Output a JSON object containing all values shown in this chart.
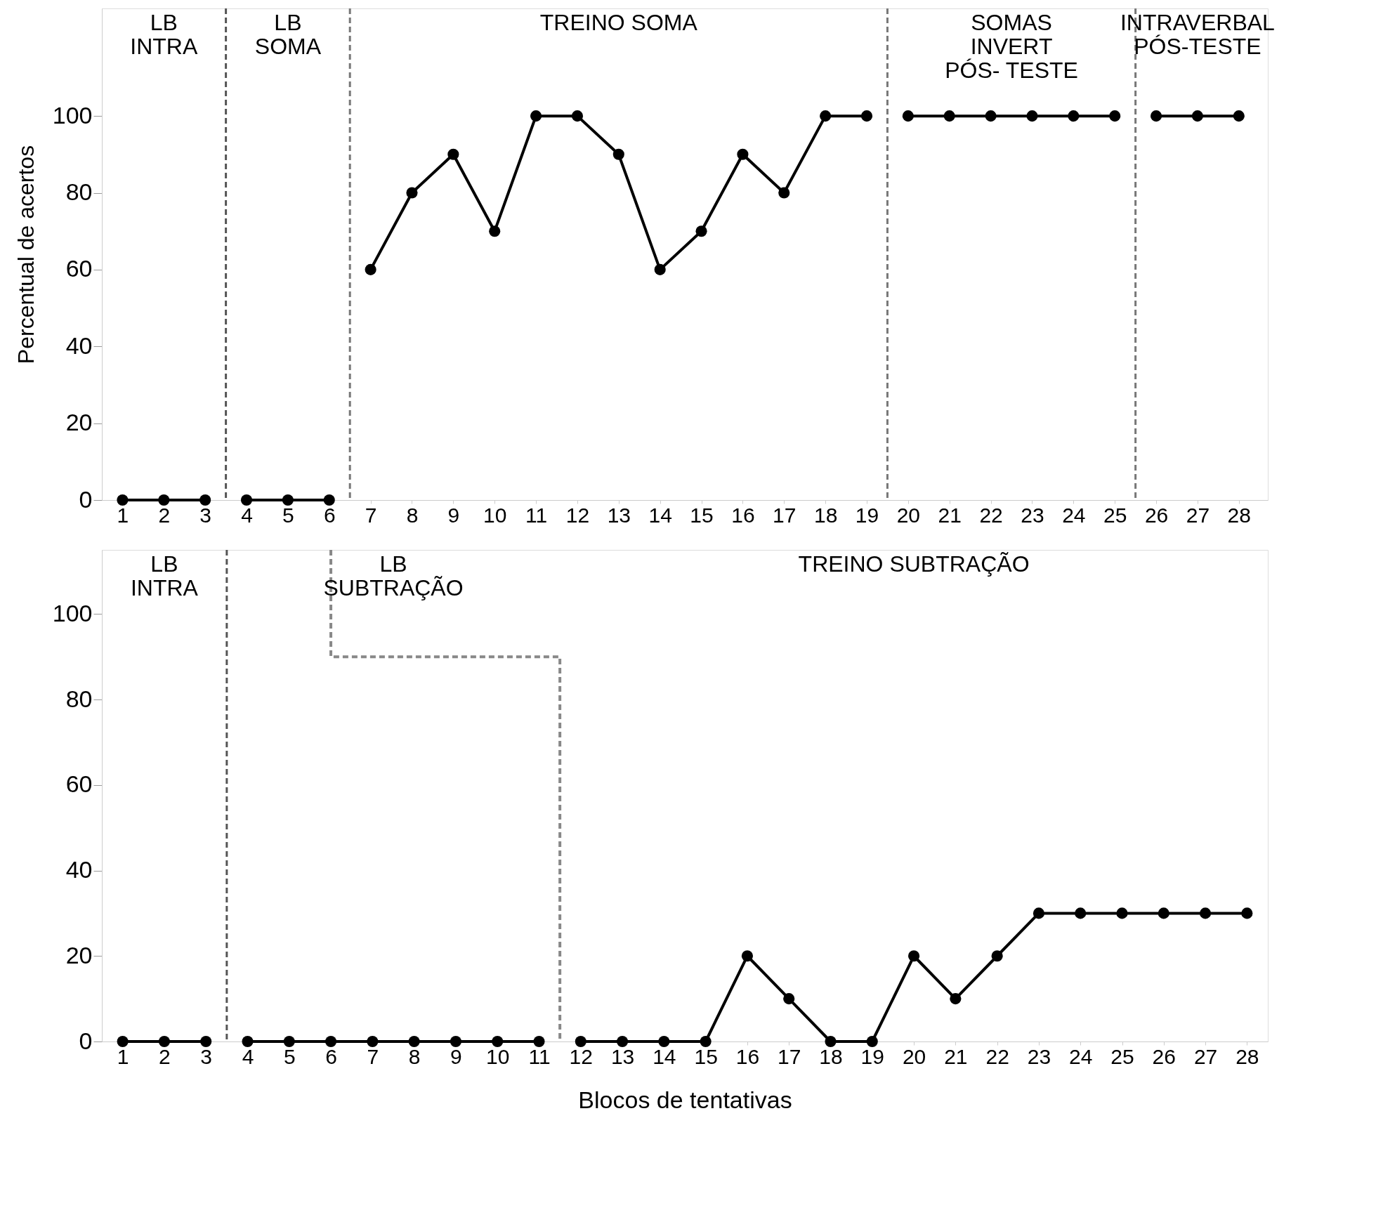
{
  "chart_data": [
    {
      "type": "line",
      "ylabel": "Percentual de acertos",
      "xlim": [
        0.5,
        28.7
      ],
      "ylim": [
        0,
        128
      ],
      "xticks": [
        1,
        2,
        3,
        4,
        5,
        6,
        7,
        8,
        9,
        10,
        11,
        12,
        13,
        14,
        15,
        16,
        17,
        18,
        19,
        20,
        21,
        22,
        23,
        24,
        25,
        26,
        27,
        28
      ],
      "yticks": [
        0,
        20,
        40,
        60,
        80,
        100
      ],
      "grid": false,
      "marker": "circle",
      "line_style": "solid",
      "series": [
        {
          "color": "#000000",
          "x": [
            1,
            2,
            3
          ],
          "values": [
            0,
            0,
            0
          ]
        },
        {
          "color": "#000000",
          "x": [
            4,
            5,
            6
          ],
          "values": [
            0,
            0,
            0
          ]
        },
        {
          "color": "#000000",
          "x": [
            7,
            8,
            9,
            10,
            11,
            12,
            13,
            14,
            15,
            16,
            17,
            18,
            19
          ],
          "values": [
            60,
            80,
            90,
            70,
            100,
            100,
            90,
            60,
            70,
            90,
            80,
            100,
            100
          ]
        },
        {
          "color": "#000000",
          "x": [
            20,
            21,
            22,
            23,
            24,
            25
          ],
          "values": [
            100,
            100,
            100,
            100,
            100,
            100
          ]
        },
        {
          "color": "#000000",
          "x": [
            26,
            27,
            28
          ],
          "values": [
            100,
            100,
            100
          ]
        }
      ],
      "ref_lines": [
        {
          "axis": "x",
          "value": 3.5,
          "color": "#555555",
          "line_style": "dashed"
        },
        {
          "axis": "x",
          "value": 6.5,
          "color": "#777777",
          "line_style": "dashed"
        },
        {
          "axis": "x",
          "value": 19.5,
          "color": "#777777",
          "line_style": "dashed"
        },
        {
          "axis": "x",
          "value": 25.5,
          "color": "#777777",
          "line_style": "dashed"
        }
      ],
      "annotations": [
        "LB\nINTRA",
        "LB\nSOMA",
        "TREINO      SOMA",
        "SOMAS\nINVERT\nPÓS- TESTE",
        "INTRAVERBAL\nPÓS-TESTE"
      ]
    },
    {
      "type": "line",
      "xlabel": "Blocos de tentativas",
      "xlim": [
        0.5,
        28.5
      ],
      "ylim": [
        0,
        115
      ],
      "xticks": [
        1,
        2,
        3,
        4,
        5,
        6,
        7,
        8,
        9,
        10,
        11,
        12,
        13,
        14,
        15,
        16,
        17,
        18,
        19,
        20,
        21,
        22,
        23,
        24,
        25,
        26,
        27,
        28
      ],
      "yticks": [
        0,
        20,
        40,
        60,
        80,
        100
      ],
      "grid": false,
      "marker": "circle",
      "line_style": "solid",
      "series": [
        {
          "color": "#000000",
          "x": [
            1,
            2,
            3
          ],
          "values": [
            0,
            0,
            0
          ]
        },
        {
          "color": "#000000",
          "x": [
            4,
            5,
            6,
            7,
            8,
            9,
            10,
            11
          ],
          "values": [
            0,
            0,
            0,
            0,
            0,
            0,
            0,
            0
          ]
        },
        {
          "color": "#000000",
          "x": [
            12,
            13,
            14,
            15,
            16,
            17,
            18,
            19,
            20,
            21,
            22,
            23,
            24,
            25,
            26,
            27,
            28
          ],
          "values": [
            0,
            0,
            0,
            0,
            20,
            10,
            0,
            0,
            20,
            10,
            20,
            30,
            30,
            30,
            30,
            30,
            30
          ]
        },
        {
          "type": "line",
          "color": "#888888",
          "marker": "none",
          "line_style": "dashed",
          "x": [
            6,
            6,
            11.5,
            11.5
          ],
          "values": [
            115,
            90,
            90,
            0
          ]
        }
      ],
      "ref_lines": [
        {
          "axis": "x",
          "value": 3.5,
          "color": "#555555",
          "line_style": "dashed"
        }
      ],
      "annotations": [
        "LB\nINTRA",
        "LB\nSUBTRAÇÃO",
        "TREINO      SUBTRAÇÃO"
      ]
    }
  ]
}
